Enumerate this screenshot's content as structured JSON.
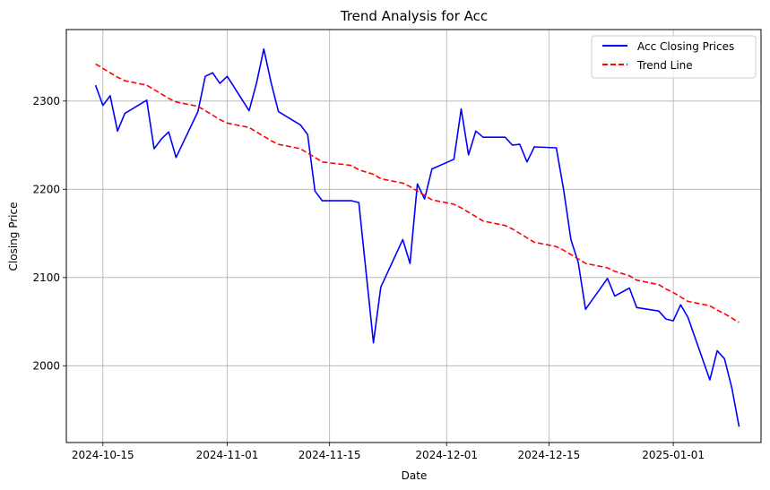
{
  "chart_data": {
    "type": "line",
    "title": "Trend Analysis for Acc",
    "xlabel": "Date",
    "ylabel": "Closing Price",
    "x_tick_labels": [
      "2024-10-15",
      "2024-11-01",
      "2024-11-15",
      "2024-12-01",
      "2024-12-15",
      "2025-01-01"
    ],
    "x_ticks": [
      "2024-10-15",
      "2024-11-01",
      "2024-11-15",
      "2024-12-01",
      "2024-12-15",
      "2025-01-01"
    ],
    "y_tick_labels": [
      "2000",
      "2100",
      "2200",
      "2300"
    ],
    "y_ticks": [
      2000,
      2100,
      2200,
      2300
    ],
    "xlim": [
      "2024-10-10",
      "2025-01-13"
    ],
    "ylim": [
      1913,
      2381
    ],
    "grid": true,
    "legend_position": "top-right",
    "series": [
      {
        "name": "Acc Closing Prices",
        "color": "#0000ff",
        "style": "solid",
        "points": [
          [
            "2024-10-14",
            2318
          ],
          [
            "2024-10-15",
            2295
          ],
          [
            "2024-10-16",
            2306
          ],
          [
            "2024-10-17",
            2266
          ],
          [
            "2024-10-18",
            2286
          ],
          [
            "2024-10-21",
            2301
          ],
          [
            "2024-10-22",
            2246
          ],
          [
            "2024-10-23",
            2257
          ],
          [
            "2024-10-24",
            2265
          ],
          [
            "2024-10-25",
            2236
          ],
          [
            "2024-10-28",
            2288
          ],
          [
            "2024-10-29",
            2328
          ],
          [
            "2024-10-30",
            2332
          ],
          [
            "2024-10-31",
            2320
          ],
          [
            "2024-11-01",
            2328
          ],
          [
            "2024-11-04",
            2289
          ],
          [
            "2024-11-05",
            2320
          ],
          [
            "2024-11-06",
            2359
          ],
          [
            "2024-11-07",
            2321
          ],
          [
            "2024-11-08",
            2288
          ],
          [
            "2024-11-11",
            2273
          ],
          [
            "2024-11-12",
            2262
          ],
          [
            "2024-11-13",
            2198
          ],
          [
            "2024-11-14",
            2187
          ],
          [
            "2024-11-18",
            2187
          ],
          [
            "2024-11-19",
            2185
          ],
          [
            "2024-11-21",
            2026
          ],
          [
            "2024-11-22",
            2089
          ],
          [
            "2024-11-25",
            2143
          ],
          [
            "2024-11-26",
            2116
          ],
          [
            "2024-11-27",
            2206
          ],
          [
            "2024-11-28",
            2189
          ],
          [
            "2024-11-29",
            2223
          ],
          [
            "2024-12-02",
            2234
          ],
          [
            "2024-12-03",
            2291
          ],
          [
            "2024-12-04",
            2239
          ],
          [
            "2024-12-05",
            2266
          ],
          [
            "2024-12-06",
            2259
          ],
          [
            "2024-12-09",
            2259
          ],
          [
            "2024-12-10",
            2250
          ],
          [
            "2024-12-11",
            2251
          ],
          [
            "2024-12-12",
            2231
          ],
          [
            "2024-12-13",
            2248
          ],
          [
            "2024-12-16",
            2247
          ],
          [
            "2024-12-17",
            2200
          ],
          [
            "2024-12-18",
            2143
          ],
          [
            "2024-12-19",
            2117
          ],
          [
            "2024-12-20",
            2064
          ],
          [
            "2024-12-23",
            2099
          ],
          [
            "2024-12-24",
            2079
          ],
          [
            "2024-12-26",
            2088
          ],
          [
            "2024-12-27",
            2066
          ],
          [
            "2024-12-30",
            2062
          ],
          [
            "2024-12-31",
            2053
          ],
          [
            "2025-01-01",
            2051
          ],
          [
            "2025-01-02",
            2069
          ],
          [
            "2025-01-03",
            2055
          ],
          [
            "2025-01-06",
            1984
          ],
          [
            "2025-01-07",
            2017
          ],
          [
            "2025-01-08",
            2008
          ],
          [
            "2025-01-09",
            1975
          ],
          [
            "2025-01-10",
            1931
          ]
        ]
      },
      {
        "name": "Trend Line",
        "color": "#ff0000",
        "style": "dashed",
        "points": [
          [
            "2024-10-14",
            2342
          ],
          [
            "2024-10-15",
            2337
          ],
          [
            "2024-10-16",
            2332
          ],
          [
            "2024-10-17",
            2327
          ],
          [
            "2024-10-18",
            2323
          ],
          [
            "2024-10-21",
            2318
          ],
          [
            "2024-10-22",
            2313
          ],
          [
            "2024-10-23",
            2308
          ],
          [
            "2024-10-24",
            2303
          ],
          [
            "2024-10-25",
            2299
          ],
          [
            "2024-10-28",
            2294
          ],
          [
            "2024-10-29",
            2289
          ],
          [
            "2024-10-30",
            2284
          ],
          [
            "2024-10-31",
            2279
          ],
          [
            "2024-11-01",
            2275
          ],
          [
            "2024-11-04",
            2270
          ],
          [
            "2024-11-05",
            2265
          ],
          [
            "2024-11-06",
            2260
          ],
          [
            "2024-11-07",
            2255
          ],
          [
            "2024-11-08",
            2251
          ],
          [
            "2024-11-11",
            2246
          ],
          [
            "2024-11-12",
            2241
          ],
          [
            "2024-11-13",
            2236
          ],
          [
            "2024-11-14",
            2231
          ],
          [
            "2024-11-18",
            2227
          ],
          [
            "2024-11-19",
            2222
          ],
          [
            "2024-11-21",
            2217
          ],
          [
            "2024-11-22",
            2212
          ],
          [
            "2024-11-25",
            2207
          ],
          [
            "2024-11-26",
            2203
          ],
          [
            "2024-11-27",
            2198
          ],
          [
            "2024-11-28",
            2193
          ],
          [
            "2024-11-29",
            2188
          ],
          [
            "2024-12-02",
            2183
          ],
          [
            "2024-12-03",
            2179
          ],
          [
            "2024-12-04",
            2174
          ],
          [
            "2024-12-05",
            2169
          ],
          [
            "2024-12-06",
            2164
          ],
          [
            "2024-12-09",
            2159
          ],
          [
            "2024-12-10",
            2155
          ],
          [
            "2024-12-11",
            2150
          ],
          [
            "2024-12-12",
            2145
          ],
          [
            "2024-12-13",
            2140
          ],
          [
            "2024-12-16",
            2135
          ],
          [
            "2024-12-17",
            2131
          ],
          [
            "2024-12-18",
            2126
          ],
          [
            "2024-12-19",
            2121
          ],
          [
            "2024-12-20",
            2116
          ],
          [
            "2024-12-23",
            2111
          ],
          [
            "2024-12-24",
            2107
          ],
          [
            "2024-12-26",
            2102
          ],
          [
            "2024-12-27",
            2097
          ],
          [
            "2024-12-30",
            2092
          ],
          [
            "2024-12-31",
            2087
          ],
          [
            "2025-01-01",
            2083
          ],
          [
            "2025-01-02",
            2078
          ],
          [
            "2025-01-03",
            2073
          ],
          [
            "2025-01-06",
            2068
          ],
          [
            "2025-01-07",
            2063
          ],
          [
            "2025-01-08",
            2059
          ],
          [
            "2025-01-09",
            2054
          ],
          [
            "2025-01-10",
            2049
          ]
        ]
      }
    ]
  }
}
